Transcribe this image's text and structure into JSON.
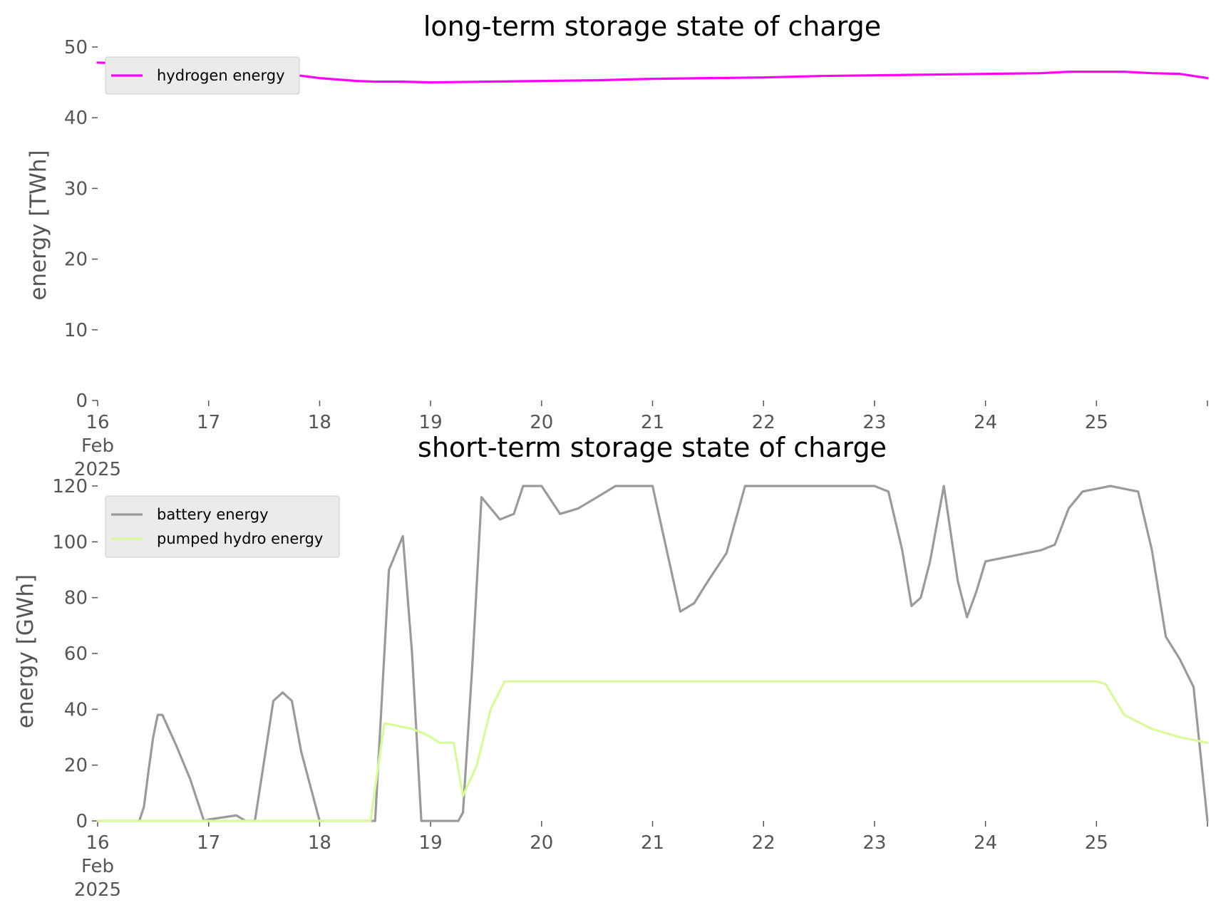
{
  "chart_data": [
    {
      "type": "line",
      "title": "long-term storage state of charge",
      "ylabel": "energy [TWh]",
      "xlabel": "",
      "x_tick_labels": [
        {
          "lines": [
            "16",
            "Feb",
            "2025"
          ]
        },
        {
          "lines": [
            "17"
          ]
        },
        {
          "lines": [
            "18"
          ]
        },
        {
          "lines": [
            "19"
          ]
        },
        {
          "lines": [
            "20"
          ]
        },
        {
          "lines": [
            "21"
          ]
        },
        {
          "lines": [
            "22"
          ]
        },
        {
          "lines": [
            "23"
          ]
        },
        {
          "lines": [
            "24"
          ]
        },
        {
          "lines": [
            "25"
          ]
        }
      ],
      "x_ticks": [
        "2025-02-16",
        "2025-02-17",
        "2025-02-18",
        "2025-02-19",
        "2025-02-20",
        "2025-02-21",
        "2025-02-22",
        "2025-02-23",
        "2025-02-24",
        "2025-02-25",
        "2025-02-26"
      ],
      "xlim": [
        "2025-02-16",
        "2025-02-26"
      ],
      "ylim": [
        0,
        50
      ],
      "yticks": [
        0,
        10,
        20,
        30,
        40,
        50
      ],
      "grid": false,
      "legend_position": "top-left",
      "series": [
        {
          "name": "hydrogen energy",
          "color": "#ff00ff",
          "x": [
            "2025-02-16 00:00",
            "2025-02-16 12:00",
            "2025-02-17 00:00",
            "2025-02-17 12:00",
            "2025-02-17 18:00",
            "2025-02-18 00:00",
            "2025-02-18 08:00",
            "2025-02-18 12:00",
            "2025-02-18 18:00",
            "2025-02-19 00:00",
            "2025-02-19 12:00",
            "2025-02-20 00:00",
            "2025-02-20 12:00",
            "2025-02-21 00:00",
            "2025-02-21 12:00",
            "2025-02-22 00:00",
            "2025-02-22 12:00",
            "2025-02-23 00:00",
            "2025-02-23 12:00",
            "2025-02-24 00:00",
            "2025-02-24 12:00",
            "2025-02-24 18:00",
            "2025-02-25 00:00",
            "2025-02-25 06:00",
            "2025-02-25 12:00",
            "2025-02-25 18:00",
            "2025-02-26 00:00"
          ],
          "y": [
            47.8,
            47.5,
            47.2,
            46.6,
            46.1,
            45.6,
            45.2,
            45.1,
            45.1,
            45.0,
            45.1,
            45.2,
            45.3,
            45.5,
            45.6,
            45.7,
            45.9,
            46.0,
            46.1,
            46.2,
            46.3,
            46.5,
            46.5,
            46.5,
            46.3,
            46.2,
            45.6
          ]
        }
      ]
    },
    {
      "type": "line",
      "title": "short-term storage state of charge",
      "ylabel": "energy [GWh]",
      "xlabel": "",
      "x_tick_labels": [
        {
          "lines": [
            "16",
            "Feb",
            "2025"
          ]
        },
        {
          "lines": [
            "17"
          ]
        },
        {
          "lines": [
            "18"
          ]
        },
        {
          "lines": [
            "19"
          ]
        },
        {
          "lines": [
            "20"
          ]
        },
        {
          "lines": [
            "21"
          ]
        },
        {
          "lines": [
            "22"
          ]
        },
        {
          "lines": [
            "23"
          ]
        },
        {
          "lines": [
            "24"
          ]
        },
        {
          "lines": [
            "25"
          ]
        }
      ],
      "x_ticks": [
        "2025-02-16",
        "2025-02-17",
        "2025-02-18",
        "2025-02-19",
        "2025-02-20",
        "2025-02-21",
        "2025-02-22",
        "2025-02-23",
        "2025-02-24",
        "2025-02-25",
        "2025-02-26"
      ],
      "xlim": [
        "2025-02-16",
        "2025-02-26"
      ],
      "ylim": [
        0,
        120
      ],
      "yticks": [
        0,
        20,
        40,
        60,
        80,
        100,
        120
      ],
      "grid": false,
      "legend_position": "top-left",
      "series": [
        {
          "name": "battery energy",
          "color": "#9a9a9a",
          "x": [
            "2025-02-16 00:00",
            "2025-02-16 09:00",
            "2025-02-16 10:00",
            "2025-02-16 11:00",
            "2025-02-16 12:00",
            "2025-02-16 13:00",
            "2025-02-16 14:00",
            "2025-02-16 17:00",
            "2025-02-16 20:00",
            "2025-02-16 23:00",
            "2025-02-17 00:00",
            "2025-02-17 06:00",
            "2025-02-17 08:00",
            "2025-02-17 10:00",
            "2025-02-17 14:00",
            "2025-02-17 16:00",
            "2025-02-17 18:00",
            "2025-02-17 20:00",
            "2025-02-18 00:00",
            "2025-02-18 06:00",
            "2025-02-18 12:00",
            "2025-02-18 15:00",
            "2025-02-18 18:00",
            "2025-02-18 20:00",
            "2025-02-18 22:00",
            "2025-02-19 00:00",
            "2025-02-19 02:00",
            "2025-02-19 06:00",
            "2025-02-19 07:00",
            "2025-02-19 09:00",
            "2025-02-19 11:00",
            "2025-02-19 15:00",
            "2025-02-19 18:00",
            "2025-02-19 20:00",
            "2025-02-19 23:00",
            "2025-02-20 00:00",
            "2025-02-20 04:00",
            "2025-02-20 06:00",
            "2025-02-20 08:00",
            "2025-02-20 12:00",
            "2025-02-20 16:00",
            "2025-02-21 00:00",
            "2025-02-21 06:00",
            "2025-02-21 09:00",
            "2025-02-21 12:00",
            "2025-02-21 16:00",
            "2025-02-21 20:00",
            "2025-02-22 00:00",
            "2025-02-22 06:00",
            "2025-02-22 12:00",
            "2025-02-22 18:00",
            "2025-02-23 00:00",
            "2025-02-23 03:00",
            "2025-02-23 06:00",
            "2025-02-23 08:00",
            "2025-02-23 10:00",
            "2025-02-23 12:00",
            "2025-02-23 15:00",
            "2025-02-23 18:00",
            "2025-02-23 20:00",
            "2025-02-23 22:00",
            "2025-02-24 00:00",
            "2025-02-24 06:00",
            "2025-02-24 12:00",
            "2025-02-24 15:00",
            "2025-02-24 18:00",
            "2025-02-24 21:00",
            "2025-02-25 00:00",
            "2025-02-25 03:00",
            "2025-02-25 06:00",
            "2025-02-25 09:00",
            "2025-02-25 12:00",
            "2025-02-25 15:00",
            "2025-02-25 18:00",
            "2025-02-25 21:00",
            "2025-02-26 00:00"
          ],
          "y": [
            0,
            0,
            5,
            18,
            30,
            38,
            38,
            27,
            15,
            0,
            0.5,
            2,
            0,
            0,
            43,
            46,
            43,
            25,
            0,
            0,
            0,
            90,
            102,
            60,
            0,
            0,
            0,
            0,
            3,
            55,
            116,
            108,
            110,
            120,
            120,
            120,
            110,
            111,
            112,
            116,
            120,
            120,
            75,
            78,
            86,
            96,
            120,
            120,
            120,
            120,
            120,
            120,
            118,
            97,
            77,
            80,
            93,
            120,
            86,
            73,
            82,
            93,
            95,
            97,
            99,
            112,
            118,
            119,
            120,
            119,
            118,
            97,
            66,
            58,
            48,
            0
          ]
        },
        {
          "name": "pumped hydro energy",
          "color": "#d9f99d",
          "x": [
            "2025-02-16 00:00",
            "2025-02-18 08:00",
            "2025-02-18 11:00",
            "2025-02-18 14:00",
            "2025-02-18 17:00",
            "2025-02-18 20:00",
            "2025-02-18 23:00",
            "2025-02-19 02:00",
            "2025-02-19 05:00",
            "2025-02-19 07:00",
            "2025-02-19 10:00",
            "2025-02-19 13:00",
            "2025-02-19 16:00",
            "2025-02-20 00:00",
            "2025-02-21 00:00",
            "2025-02-22 00:00",
            "2025-02-23 00:00",
            "2025-02-24 00:00",
            "2025-02-25 00:00",
            "2025-02-25 02:00",
            "2025-02-25 06:00",
            "2025-02-25 12:00",
            "2025-02-25 18:00",
            "2025-02-26 00:00"
          ],
          "y": [
            0,
            0,
            0,
            35,
            34,
            33,
            31,
            28,
            28,
            9,
            20,
            40,
            50,
            50,
            50,
            50,
            50,
            50,
            50,
            49,
            38,
            33,
            30,
            28
          ]
        }
      ]
    }
  ]
}
